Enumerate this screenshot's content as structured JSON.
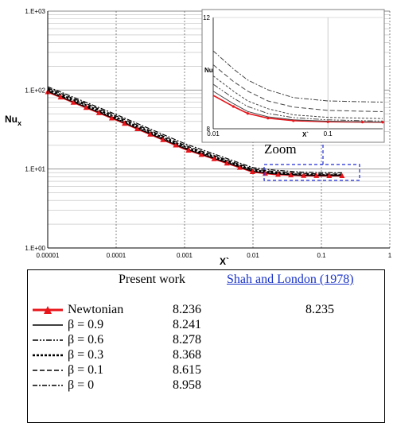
{
  "chart_data": [
    {
      "type": "line",
      "title": "",
      "xlabel": "X`",
      "ylabel": "Nu_x",
      "xscale": "log",
      "yscale": "log",
      "xlim": [
        1e-05,
        1
      ],
      "ylim": [
        1,
        1000
      ],
      "x_tick_labels": [
        "0.00001",
        "0.0001",
        "0.001",
        "0.01",
        "0.1",
        "1"
      ],
      "y_tick_labels": [
        "1.E+00",
        "1.E+01",
        "1.E+02",
        "1.E+03"
      ],
      "grid": true,
      "series": [
        {
          "name": "Newtonian",
          "x": [
            1e-05,
            0.0001,
            0.001,
            0.01,
            0.02,
            0.05,
            0.1,
            0.2
          ],
          "values": [
            95,
            42,
            18,
            9.2,
            8.6,
            8.3,
            8.25,
            8.24
          ]
        },
        {
          "name": "β = 0.9",
          "x": [
            1e-05,
            0.0001,
            0.001,
            0.01,
            0.02,
            0.05,
            0.1,
            0.2
          ],
          "values": [
            96,
            42.5,
            18.2,
            9.3,
            8.7,
            8.33,
            8.27,
            8.25
          ]
        },
        {
          "name": "β = 0.6",
          "x": [
            1e-05,
            0.0001,
            0.001,
            0.01,
            0.02,
            0.05,
            0.1,
            0.2
          ],
          "values": [
            99,
            43.5,
            18.6,
            9.5,
            8.8,
            8.4,
            8.32,
            8.29
          ]
        },
        {
          "name": "β = 0.3",
          "x": [
            1e-05,
            0.0001,
            0.001,
            0.01,
            0.02,
            0.05,
            0.1,
            0.2
          ],
          "values": [
            102,
            45,
            19.2,
            9.7,
            9.0,
            8.5,
            8.41,
            8.38
          ]
        },
        {
          "name": "β = 0.1",
          "x": [
            1e-05,
            0.0001,
            0.001,
            0.01,
            0.02,
            0.05,
            0.1,
            0.2
          ],
          "values": [
            106,
            47,
            20,
            10.0,
            9.3,
            8.8,
            8.66,
            8.63
          ]
        },
        {
          "name": "β = 0",
          "x": [
            1e-05,
            0.0001,
            0.001,
            0.01,
            0.02,
            0.05,
            0.1,
            0.2
          ],
          "values": [
            110,
            49,
            21,
            10.4,
            9.7,
            9.15,
            9.0,
            8.97
          ]
        }
      ],
      "annotation": "Zoom"
    },
    {
      "type": "line",
      "title": "",
      "xlabel": "X`",
      "ylabel": "Nu",
      "xscale": "log",
      "xlim": [
        0.01,
        0.3
      ],
      "ylim": [
        8,
        12
      ],
      "x_tick_labels": [
        "0.01",
        "0.1"
      ],
      "y_tick_labels": [
        "8",
        "12"
      ],
      "grid": true,
      "series": [
        {
          "name": "Newtonian",
          "x": [
            0.01,
            0.015,
            0.02,
            0.03,
            0.05,
            0.1,
            0.2,
            0.3
          ],
          "values": [
            9.2,
            8.8,
            8.55,
            8.38,
            8.29,
            8.25,
            8.24,
            8.236
          ]
        },
        {
          "name": "β = 0.9",
          "x": [
            0.01,
            0.015,
            0.02,
            0.03,
            0.05,
            0.1,
            0.2,
            0.3
          ],
          "values": [
            9.35,
            8.9,
            8.62,
            8.43,
            8.32,
            8.27,
            8.25,
            8.241
          ]
        },
        {
          "name": "β = 0.6",
          "x": [
            0.01,
            0.015,
            0.02,
            0.03,
            0.05,
            0.1,
            0.2,
            0.3
          ],
          "values": [
            9.6,
            9.1,
            8.8,
            8.55,
            8.4,
            8.32,
            8.29,
            8.278
          ]
        },
        {
          "name": "β = 0.3",
          "x": [
            0.01,
            0.015,
            0.02,
            0.03,
            0.05,
            0.1,
            0.2,
            0.3
          ],
          "values": [
            9.9,
            9.35,
            9.0,
            8.72,
            8.5,
            8.41,
            8.38,
            8.368
          ]
        },
        {
          "name": "β = 0.1",
          "x": [
            0.01,
            0.015,
            0.02,
            0.03,
            0.05,
            0.1,
            0.2,
            0.3
          ],
          "values": [
            10.3,
            9.7,
            9.35,
            9.0,
            8.78,
            8.66,
            8.63,
            8.615
          ]
        },
        {
          "name": "β = 0",
          "x": [
            0.01,
            0.015,
            0.02,
            0.03,
            0.05,
            0.1,
            0.2,
            0.3
          ],
          "values": [
            10.8,
            10.15,
            9.75,
            9.4,
            9.12,
            9.0,
            8.97,
            8.958
          ]
        }
      ]
    },
    {
      "type": "table",
      "columns": [
        "",
        "Present work",
        "Shah and London (1978)"
      ],
      "rows": [
        {
          "label": "Newtonian",
          "present": "8.236",
          "shah": "8.235"
        },
        {
          "label": "β = 0.9",
          "present": "8.241",
          "shah": ""
        },
        {
          "label": "β = 0.6",
          "present": "8.278",
          "shah": ""
        },
        {
          "label": "β = 0.3",
          "present": "8.368",
          "shah": ""
        },
        {
          "label": "β = 0.1",
          "present": "8.615",
          "shah": ""
        },
        {
          "label": "β = 0",
          "present": "8.958",
          "shah": ""
        }
      ]
    }
  ],
  "styles": {
    "newtonian_color": "#e8151b",
    "curve_color": "#000000",
    "zoom_color": "#1f2bd6",
    "grid_color": "#bdbdbd",
    "dash_patterns": [
      "",
      "",
      "7 2 2 2 2 2",
      "3 2",
      "6 3",
      "6 2 2 2"
    ]
  }
}
